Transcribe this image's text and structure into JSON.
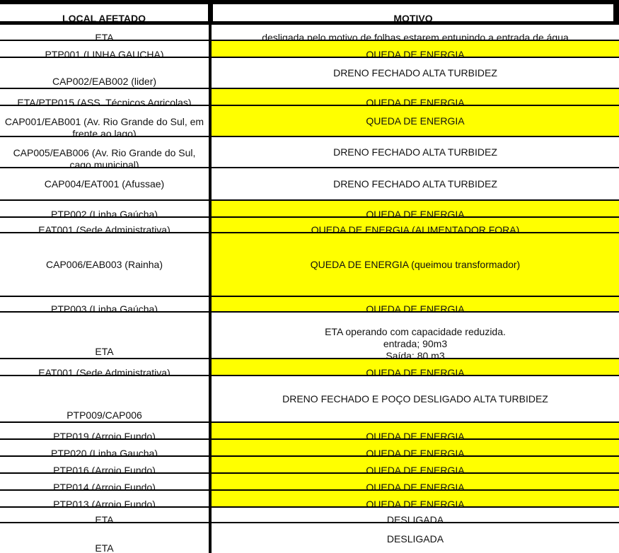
{
  "header": {
    "local": "LOCAL AFETADO",
    "motivo": "MOTIVO"
  },
  "colors": {
    "highlight": "#ffff00",
    "border": "#000000"
  },
  "rows": [
    {
      "local": "ETA",
      "motivo": "desligada pelo motivo de folhas estarem entupindo a entrada de água",
      "highlight": false
    },
    {
      "local": "PTP001 (LINHA GAUCHA)",
      "motivo": "QUEDA DE ENERGIA",
      "highlight": true
    },
    {
      "local": "CAP002/EAB002 (lider)",
      "motivo": "DRENO FECHADO ALTA TURBIDEZ",
      "highlight": false
    },
    {
      "local": "ETA/PTP015 (ASS. Técnicos Agricolas)",
      "motivo": "QUEDA DE ENERGIA",
      "highlight": true
    },
    {
      "local": "CAP001/EAB001 (Av. Rio Grande do Sul, em frente ao lago)",
      "motivo": "QUEDA DE ENERGIA",
      "highlight": true
    },
    {
      "local": "CAP005/EAB006 (Av. Rio Grande do Sul, cago municipal)",
      "motivo": "DRENO FECHADO ALTA TURBIDEZ",
      "highlight": false
    },
    {
      "local": "CAP004/EAT001 (Afussae)",
      "motivo": "DRENO FECHADO ALTA TURBIDEZ",
      "highlight": false
    },
    {
      "local": "PTP002 (Linha Gaúcha)",
      "motivo": "QUEDA DE ENERGIA",
      "highlight": true
    },
    {
      "local": "EAT001 (Sede Administrativa)",
      "motivo": "QUEDA DE ENERGIA (ALIMENTADOR FORA)",
      "highlight": true
    },
    {
      "local": "CAP006/EAB003 (Rainha)",
      "motivo": "QUEDA DE ENERGIA (queimou transformador)",
      "highlight": true
    },
    {
      "local": "PTP003 (Linha Gaúcha)",
      "motivo": "QUEDA DE ENERGIA",
      "highlight": true
    },
    {
      "local": "ETA",
      "motivo": "ETA operando com capacidade reduzida.\nentrada; 90m3\nSaída; 80 m3",
      "highlight": false
    },
    {
      "local": "EAT001 (Sede Administrativa)",
      "motivo": "QUEDA DE ENERGIA",
      "highlight": true
    },
    {
      "local": "PTP009/CAP006",
      "motivo": "DRENO FECHADO E POÇO DESLIGADO ALTA TURBIDEZ",
      "highlight": false
    },
    {
      "local": "PTP019 (Arroio Fundo)",
      "motivo": "QUEDA DE ENERGIA",
      "highlight": true
    },
    {
      "local": "PTP020 (Linha Gaucha)",
      "motivo": "QUEDA DE ENERGIA",
      "highlight": true
    },
    {
      "local": "PTP016 (Arroio Fundo)",
      "motivo": "QUEDA DE ENERGIA",
      "highlight": true
    },
    {
      "local": "PTP014 (Arroio Fundo)",
      "motivo": "QUEDA DE ENERGIA",
      "highlight": true
    },
    {
      "local": "PTP013 (Arroio Fundo)",
      "motivo": "QUEDA DE ENERGIA",
      "highlight": true
    },
    {
      "local": "ETA",
      "motivo": "DESLIGADA",
      "highlight": false
    },
    {
      "local": "ETA",
      "motivo": "DESLIGADA",
      "highlight": false
    }
  ]
}
